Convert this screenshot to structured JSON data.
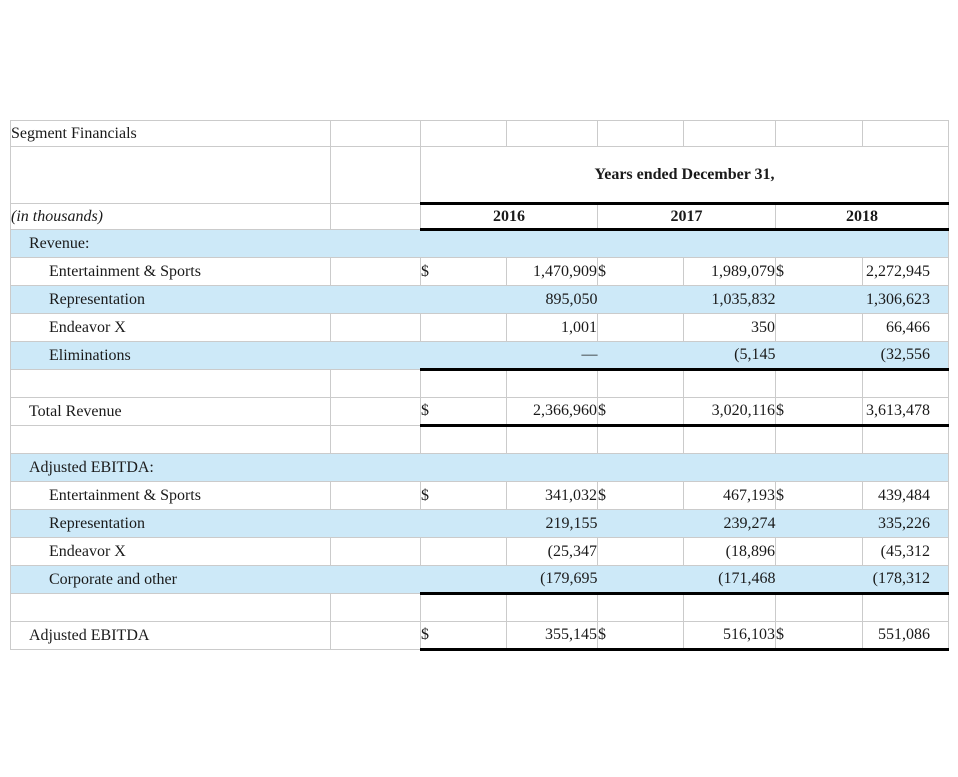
{
  "table": {
    "title": "Segment Financials",
    "units_label": "(in thousands)",
    "period_header": "Years ended December 31,",
    "years": [
      "2016",
      "2017",
      "2018"
    ],
    "currency_symbol": "$",
    "colors": {
      "band": "#cde9f8",
      "gridline": "#cbcbcb",
      "rule": "#000000",
      "text": "#1a1a1a"
    },
    "rows": [
      {
        "type": "section",
        "label": "Revenue:",
        "indent": 1,
        "band": true
      },
      {
        "type": "data",
        "label": "Entertainment & Sports",
        "indent": 2,
        "band": false,
        "dollar": true,
        "values": [
          "1,470,909",
          "1,989,079",
          "2,272,945"
        ]
      },
      {
        "type": "data",
        "label": "Representation",
        "indent": 2,
        "band": true,
        "values": [
          "895,050",
          "1,035,832",
          "1,306,623"
        ]
      },
      {
        "type": "data",
        "label": "Endeavor X",
        "indent": 2,
        "band": false,
        "values": [
          "1,001",
          "350",
          "66,466"
        ]
      },
      {
        "type": "data",
        "label": "Eliminations",
        "indent": 2,
        "band": true,
        "thick_bottom": true,
        "values": [
          "—",
          "(5,145",
          "(32,556"
        ]
      },
      {
        "type": "spacer"
      },
      {
        "type": "data",
        "label": "Total Revenue",
        "indent": 1,
        "band": false,
        "dollar": true,
        "thick_bottom": true,
        "values": [
          "2,366,960",
          "3,020,116",
          "3,613,478"
        ]
      },
      {
        "type": "spacer"
      },
      {
        "type": "section",
        "label": "Adjusted EBITDA:",
        "indent": 1,
        "band": true
      },
      {
        "type": "data",
        "label": "Entertainment & Sports",
        "indent": 2,
        "band": false,
        "dollar": true,
        "values": [
          "341,032",
          "467,193",
          "439,484"
        ]
      },
      {
        "type": "data",
        "label": "Representation",
        "indent": 2,
        "band": true,
        "values": [
          "219,155",
          "239,274",
          "335,226"
        ]
      },
      {
        "type": "data",
        "label": "Endeavor X",
        "indent": 2,
        "band": false,
        "values": [
          "(25,347",
          "(18,896",
          "(45,312"
        ]
      },
      {
        "type": "data",
        "label": "Corporate and other",
        "indent": 2,
        "band": true,
        "thick_bottom": true,
        "values": [
          "(179,695",
          "(171,468",
          "(178,312"
        ]
      },
      {
        "type": "spacer"
      },
      {
        "type": "data",
        "label": "Adjusted EBITDA",
        "indent": 1,
        "band": false,
        "dollar": true,
        "thick_bottom": true,
        "values": [
          "355,145",
          "516,103",
          "551,086"
        ]
      }
    ]
  }
}
